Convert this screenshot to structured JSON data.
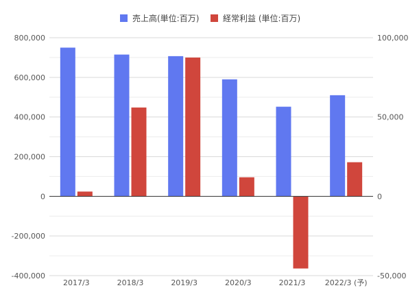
{
  "chart_data": {
    "type": "bar",
    "categories": [
      "2017/3",
      "2018/3",
      "2019/3",
      "2020/3",
      "2021/3",
      "2022/3 (予)"
    ],
    "series": [
      {
        "name": "売上高(単位:百万)",
        "axis": "left",
        "color": "#6078f0",
        "values": [
          750000,
          715000,
          707000,
          590000,
          452000,
          510000
        ]
      },
      {
        "name": "経常利益 (単位:百万)",
        "axis": "right",
        "color": "#d0463c",
        "values": [
          3000,
          56000,
          87500,
          12000,
          -45500,
          21500
        ]
      }
    ],
    "left_axis": {
      "ylim": [
        -400000,
        800000
      ],
      "ticks": [
        800000,
        600000,
        400000,
        200000,
        0,
        -200000,
        -400000
      ],
      "tick_labels": [
        "800,000",
        "600,000",
        "400,000",
        "200,000",
        "0",
        "-200,000",
        "-400,000"
      ]
    },
    "right_axis": {
      "ylim": [
        -50000,
        100000
      ],
      "ticks": [
        100000,
        50000,
        0,
        -50000
      ],
      "tick_labels": [
        "100,000",
        "50,000",
        "0",
        "-50,000"
      ]
    },
    "grid": true,
    "legend_position": "top-center"
  }
}
